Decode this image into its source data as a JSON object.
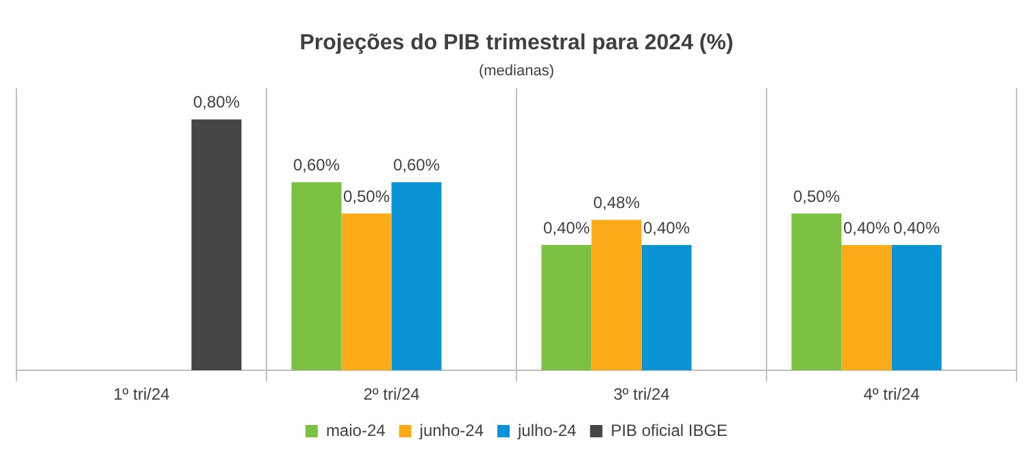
{
  "chart_data": {
    "type": "bar",
    "title": "Projeções do PIB trimestral para 2024 (%)",
    "subtitle": "(medianas)",
    "categories": [
      "1º tri/24",
      "2º tri/24",
      "3º tri/24",
      "4º tri/24"
    ],
    "series": [
      {
        "name": "maio-24",
        "color": "#7dc142",
        "values": [
          null,
          0.6,
          0.4,
          0.5
        ],
        "value_labels": [
          null,
          "0,60%",
          "0,40%",
          "0,50%"
        ]
      },
      {
        "name": "junho-24",
        "color": "#fbab18",
        "values": [
          null,
          0.5,
          0.48,
          0.4
        ],
        "value_labels": [
          null,
          "0,50%",
          "0,48%",
          "0,40%"
        ]
      },
      {
        "name": "julho-24",
        "color": "#0a94d6",
        "values": [
          null,
          0.6,
          0.4,
          0.4
        ],
        "value_labels": [
          null,
          "0,60%",
          "0,40%",
          "0,40%"
        ]
      },
      {
        "name": "PIB oficial IBGE",
        "color": "#444546",
        "values": [
          0.8,
          null,
          null,
          null
        ],
        "value_labels": [
          "0,80%",
          null,
          null,
          null
        ]
      }
    ],
    "grid": "x",
    "legend": "bottom"
  }
}
